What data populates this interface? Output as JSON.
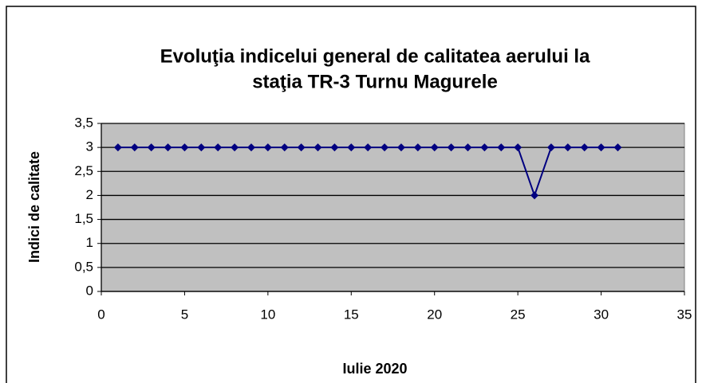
{
  "chart_data": {
    "type": "line",
    "title": [
      "Evoluţia indicelui general de calitatea aerului la",
      "staţia TR-3 Turnu Magurele"
    ],
    "x_label": "Iulie 2020",
    "y_label": "Indici de calitate",
    "x": [
      1,
      2,
      3,
      4,
      5,
      6,
      7,
      8,
      9,
      10,
      11,
      12,
      13,
      14,
      15,
      16,
      17,
      18,
      19,
      20,
      21,
      22,
      23,
      24,
      25,
      26,
      27,
      28,
      29,
      30,
      31
    ],
    "series": [
      {
        "color": "#000080",
        "values": [
          3,
          3,
          3,
          3,
          3,
          3,
          3,
          3,
          3,
          3,
          3,
          3,
          3,
          3,
          3,
          3,
          3,
          3,
          3,
          3,
          3,
          3,
          3,
          3,
          3,
          2,
          3,
          3,
          3,
          3,
          3
        ]
      }
    ],
    "xlim": [
      0,
      35
    ],
    "xticks": [
      0,
      5,
      10,
      15,
      20,
      25,
      30,
      35
    ],
    "ylim": [
      0,
      3.5
    ],
    "yticks": [
      0,
      {
        "value": 0.5,
        "label": "0,5"
      },
      1,
      {
        "value": 1.5,
        "label": "1,5"
      },
      2,
      {
        "value": 2.5,
        "label": "2,5"
      },
      3,
      {
        "value": 3.5,
        "label": "3,5"
      }
    ],
    "grid": true,
    "plot_background": "#c0c0c0"
  }
}
